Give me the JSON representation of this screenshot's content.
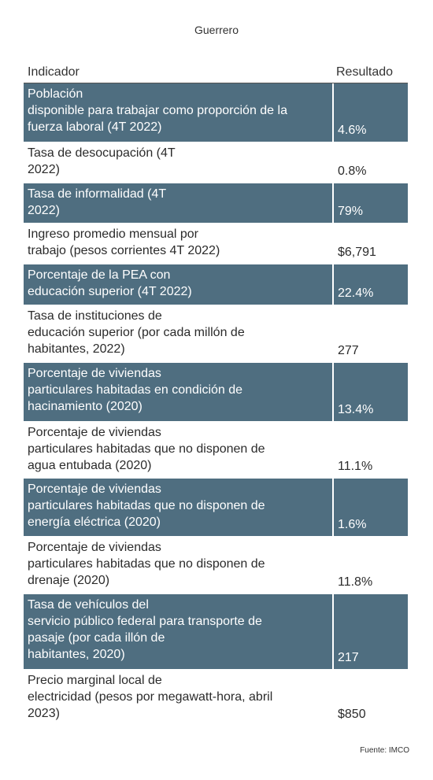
{
  "title": "Guerrero",
  "table": {
    "headers": {
      "indicator": "Indicador",
      "result": "Resultado"
    },
    "rows": [
      {
        "lines": [
          "Población",
          "disponible para trabajar como proporción de la",
          "fuerza laboral (4T 2022)"
        ],
        "value": "4.6%"
      },
      {
        "lines": [
          "Tasa de desocupación (4T",
          "2022)"
        ],
        "value": "0.8%"
      },
      {
        "lines": [
          "Tasa de informalidad (4T",
          "2022)"
        ],
        "value": "79%"
      },
      {
        "lines": [
          "Ingreso promedio mensual por",
          "trabajo (pesos corrientes 4T 2022)"
        ],
        "value": "$6,791"
      },
      {
        "lines": [
          "Porcentaje de la PEA con",
          "educación superior (4T 2022)"
        ],
        "value": "22.4%"
      },
      {
        "lines": [
          "Tasa de instituciones de",
          "educación superior (por cada millón de",
          "habitantes, 2022)"
        ],
        "value": "277"
      },
      {
        "lines": [
          "Porcentaje de viviendas",
          "particulares habitadas en condición de",
          "hacinamiento (2020)"
        ],
        "value": "13.4%"
      },
      {
        "lines": [
          "Porcentaje de viviendas",
          "particulares habitadas que no disponen de",
          "agua entubada (2020)"
        ],
        "value": "11.1%"
      },
      {
        "lines": [
          "Porcentaje de viviendas",
          "particulares habitadas que no disponen de",
          "energía eléctrica (2020)"
        ],
        "value": "1.6%"
      },
      {
        "lines": [
          "Porcentaje de viviendas",
          "particulares habitadas que no disponen de",
          "drenaje (2020)"
        ],
        "value": "11.8%"
      },
      {
        "lines": [
          "Tasa de vehículos del",
          "servicio público federal para transporte de",
          "pasaje (por cada illón de",
          "habitantes, 2020)"
        ],
        "value": "217"
      },
      {
        "lines": [
          "Precio marginal local de",
          "electricidad (pesos por megawatt-hora, abril",
          "2023)"
        ],
        "value": "$850"
      }
    ]
  },
  "footer": {
    "source": "Fuente: IMCO"
  },
  "colors": {
    "dark_row": "#4f6e80",
    "light_row": "#ffffff",
    "text": "#2b2b2b"
  }
}
